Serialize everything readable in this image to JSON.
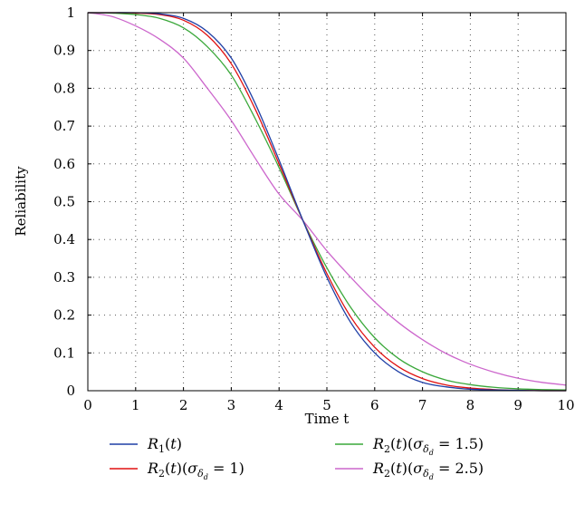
{
  "chart_data": {
    "type": "line",
    "title": "",
    "xlabel": "Time t",
    "ylabel": "Reliability",
    "xlim": [
      0,
      10
    ],
    "ylim": [
      0,
      1
    ],
    "grid": true,
    "legend_position": "bottom",
    "x_ticks": [
      "0",
      "1",
      "2",
      "3",
      "4",
      "5",
      "6",
      "7",
      "8",
      "9",
      "10"
    ],
    "y_ticks": [
      "0",
      "0.1",
      "0.2",
      "0.3",
      "0.4",
      "0.5",
      "0.6",
      "0.7",
      "0.8",
      "0.9",
      "1"
    ],
    "x": [
      0,
      0.5,
      1,
      1.5,
      2,
      2.5,
      3,
      3.5,
      4,
      4.5,
      5,
      5.5,
      6,
      6.5,
      7,
      7.5,
      8,
      8.5,
      9,
      9.5,
      10
    ],
    "series": [
      {
        "name": "R1(t)",
        "label": {
          "main": "R",
          "sub": "1",
          "arg": "(t)",
          "sigma_value": ""
        },
        "color": "#1f3fa6",
        "values": [
          1.0,
          1.0,
          1.0,
          0.997,
          0.985,
          0.95,
          0.88,
          0.76,
          0.61,
          0.45,
          0.3,
          0.18,
          0.1,
          0.05,
          0.022,
          0.01,
          0.004,
          0.002,
          0.001,
          0.0,
          0.0
        ]
      },
      {
        "name": "R2(t)(σδd = 1)",
        "label": {
          "main": "R",
          "sub": "2",
          "arg": "(t)",
          "sigma_value": "1"
        },
        "color": "#e01010",
        "values": [
          1.0,
          1.0,
          0.999,
          0.995,
          0.98,
          0.94,
          0.865,
          0.745,
          0.6,
          0.45,
          0.31,
          0.195,
          0.115,
          0.063,
          0.032,
          0.015,
          0.007,
          0.003,
          0.001,
          0.0,
          0.0
        ]
      },
      {
        "name": "R2(t)(σδd = 1.5)",
        "label": {
          "main": "R",
          "sub": "2",
          "arg": "(t)",
          "sigma_value": "1.5"
        },
        "color": "#3aa83a",
        "values": [
          1.0,
          0.999,
          0.995,
          0.985,
          0.96,
          0.91,
          0.835,
          0.72,
          0.59,
          0.45,
          0.325,
          0.22,
          0.14,
          0.085,
          0.05,
          0.028,
          0.016,
          0.009,
          0.005,
          0.003,
          0.002
        ]
      },
      {
        "name": "R2(t)(σδd = 2.5)",
        "label": {
          "main": "R",
          "sub": "2",
          "arg": "(t)",
          "sigma_value": "2.5"
        },
        "color": "#cc66cc",
        "values": [
          1.0,
          0.99,
          0.965,
          0.93,
          0.88,
          0.8,
          0.715,
          0.615,
          0.52,
          0.45,
          0.37,
          0.3,
          0.235,
          0.18,
          0.135,
          0.098,
          0.07,
          0.049,
          0.033,
          0.022,
          0.015
        ]
      }
    ]
  }
}
